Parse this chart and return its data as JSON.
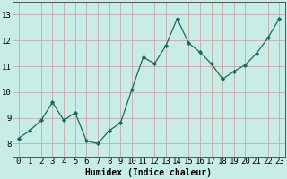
{
  "x": [
    0,
    1,
    2,
    3,
    4,
    5,
    6,
    7,
    8,
    9,
    10,
    11,
    12,
    13,
    14,
    15,
    16,
    17,
    18,
    19,
    20,
    21,
    22,
    23
  ],
  "y": [
    8.2,
    8.5,
    8.9,
    9.6,
    8.9,
    9.2,
    8.1,
    8.0,
    8.5,
    8.8,
    10.1,
    11.35,
    11.1,
    11.8,
    12.85,
    11.9,
    11.55,
    11.1,
    10.5,
    10.8,
    11.05,
    11.5,
    12.1,
    12.85
  ],
  "line_color": "#1a6b5a",
  "bg_color": "#c8ece6",
  "grid_color": "#c8a8a8",
  "xlabel": "Humidex (Indice chaleur)",
  "xlim": [
    -0.5,
    23.5
  ],
  "ylim": [
    7.5,
    13.5
  ],
  "yticks": [
    8,
    9,
    10,
    11,
    12,
    13
  ],
  "xticks": [
    0,
    1,
    2,
    3,
    4,
    5,
    6,
    7,
    8,
    9,
    10,
    11,
    12,
    13,
    14,
    15,
    16,
    17,
    18,
    19,
    20,
    21,
    22,
    23
  ],
  "marker": "D",
  "marker_size": 2.2,
  "line_width": 0.9,
  "xlabel_fontsize": 7,
  "tick_fontsize": 6.5,
  "font_family": "monospace"
}
